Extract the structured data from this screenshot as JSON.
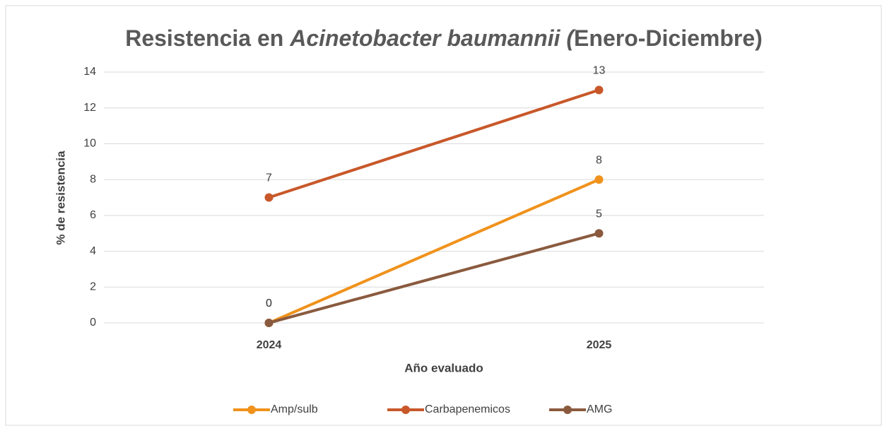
{
  "chart_data": {
    "type": "line",
    "title": [
      {
        "text": "Resistencia en ",
        "italic": false
      },
      {
        "text": "Acinetobacter baumannii (",
        "italic": true
      },
      {
        "text": "Enero-Diciembre)",
        "italic": false
      }
    ],
    "x_label": "Año evaluado",
    "y_label": "% de resistencia",
    "categories": [
      "2024",
      "2025"
    ],
    "series": [
      {
        "name": "Amp/sulb",
        "color": "#f0921c",
        "values": [
          0,
          8
        ]
      },
      {
        "name": "Carbapenemicos",
        "color": "#c8582a",
        "values": [
          7,
          13
        ]
      },
      {
        "name": "AMG",
        "color": "#8a5a3e",
        "values": [
          0,
          5
        ]
      }
    ],
    "ylim": [
      0,
      14
    ],
    "yticks": [
      0,
      2,
      4,
      6,
      8,
      10,
      12,
      14
    ],
    "grid": true,
    "legend": "bottom"
  }
}
